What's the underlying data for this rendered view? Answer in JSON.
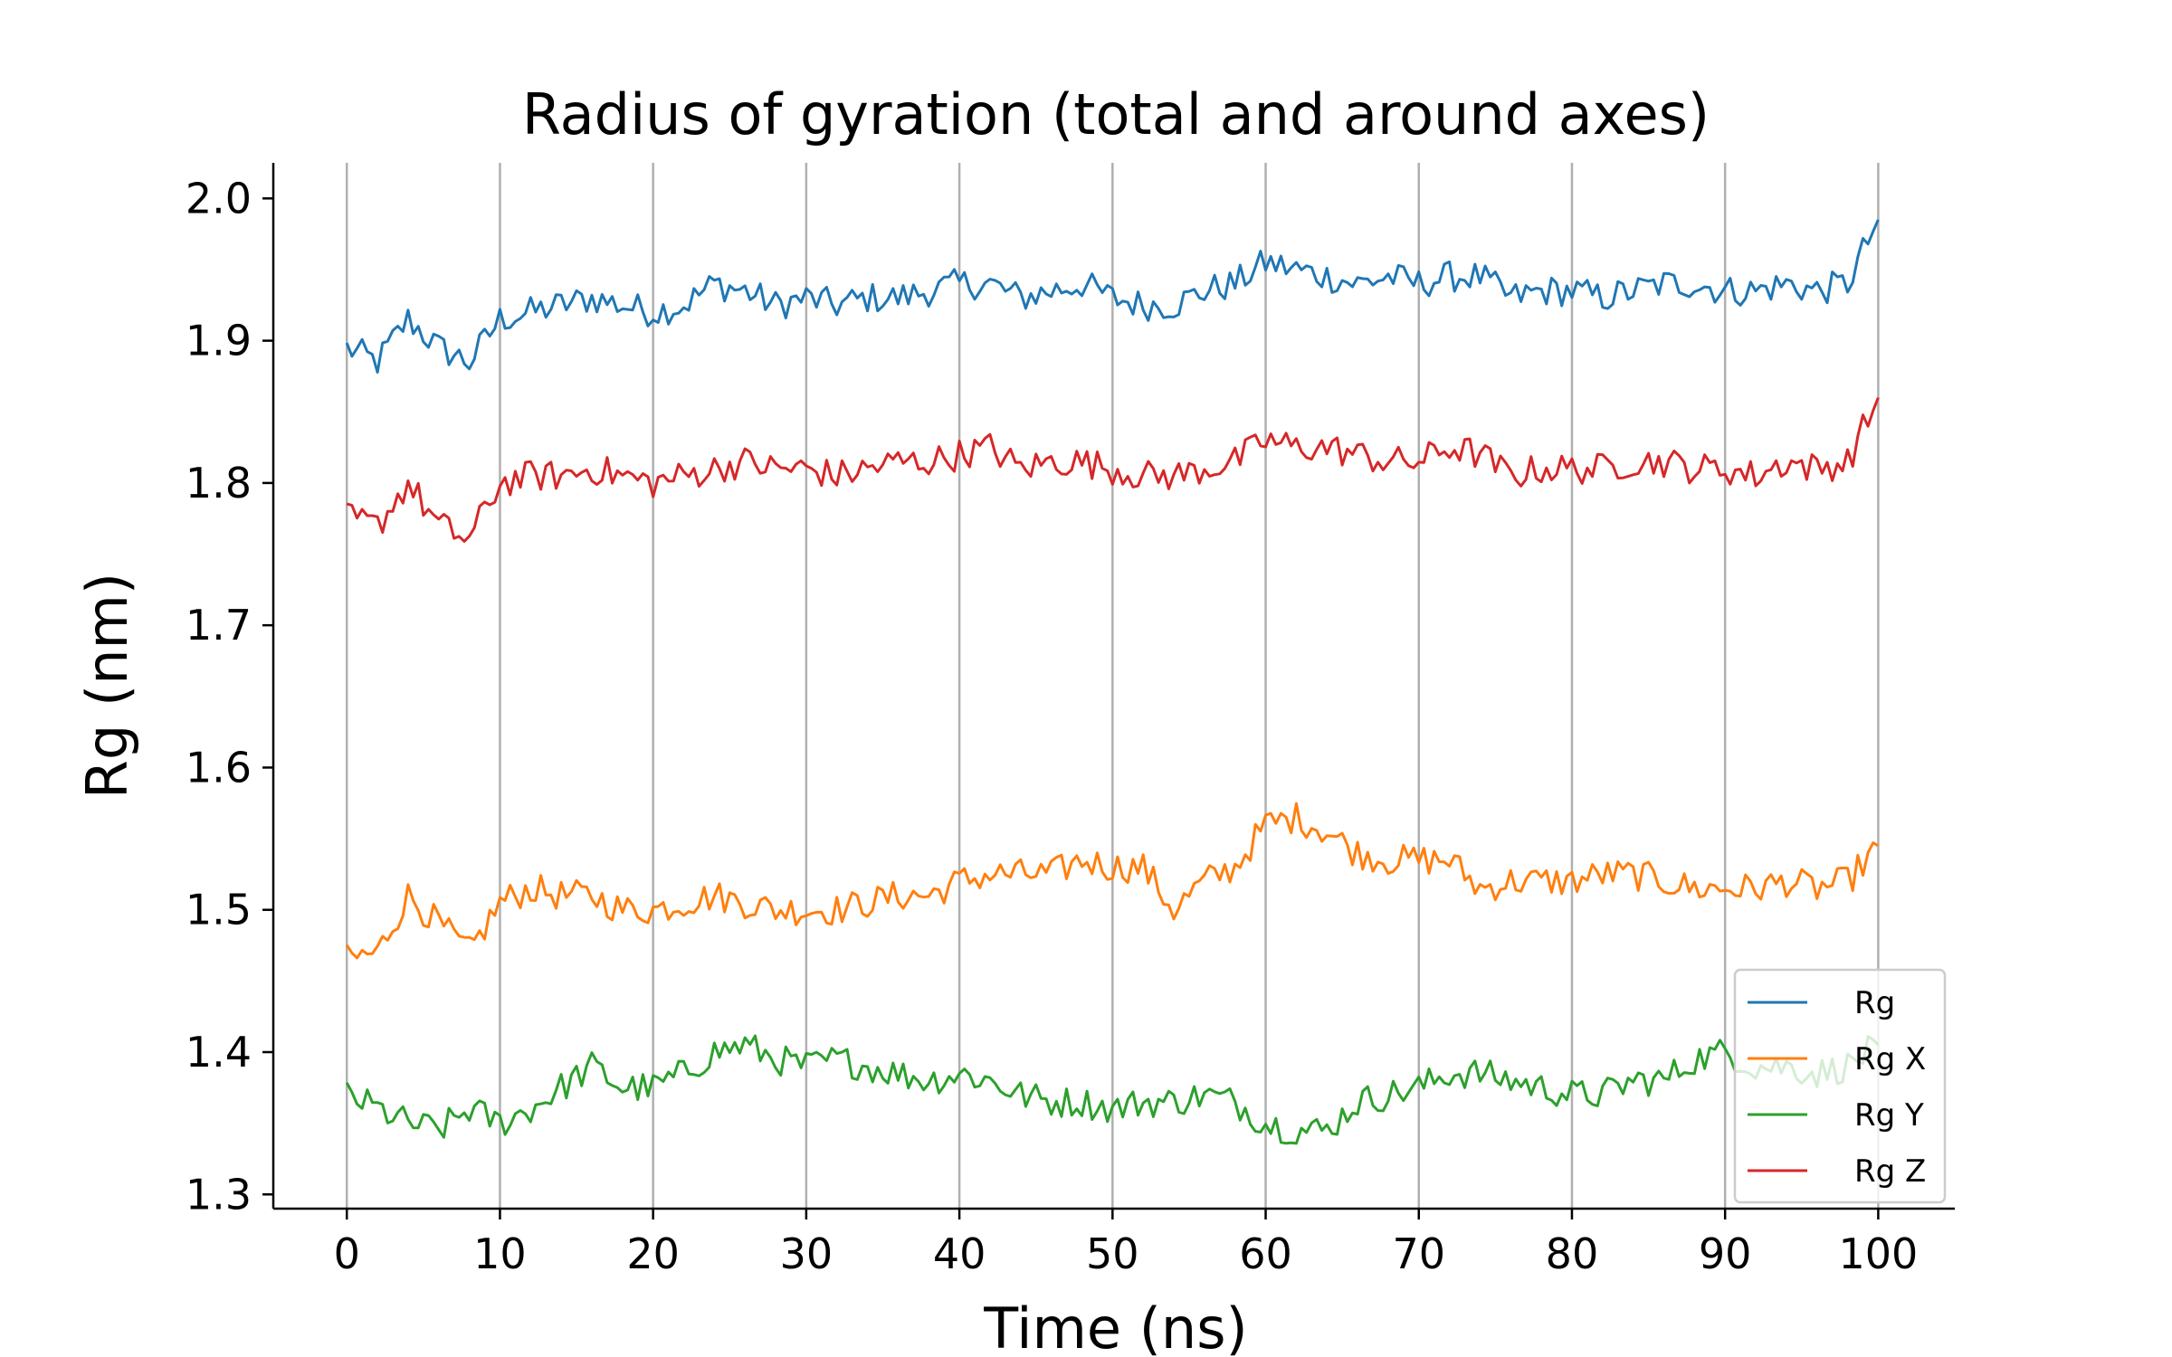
{
  "chart_data": {
    "type": "line",
    "title": "Radius of gyration (total and around axes)",
    "xlabel": "Time (ns)",
    "ylabel": "Rg (nm)",
    "xlim": [
      -4.8,
      105
    ],
    "ylim": [
      1.29,
      2.025
    ],
    "x_ticks": [
      0,
      10,
      20,
      30,
      40,
      50,
      60,
      70,
      80,
      90,
      100
    ],
    "x_tick_labels": [
      "0",
      "10",
      "20",
      "30",
      "40",
      "50",
      "60",
      "70",
      "80",
      "90",
      "100"
    ],
    "y_ticks": [
      1.3,
      1.4,
      1.5,
      1.6,
      1.7,
      1.8,
      1.9,
      2.0
    ],
    "y_tick_labels": [
      "1.3",
      "1.4",
      "1.5",
      "1.6",
      "1.7",
      "1.8",
      "1.9",
      "2.0"
    ],
    "grid": "vertical",
    "legend_position": "lower right",
    "x": [
      0,
      2,
      4,
      6,
      8,
      10,
      12,
      14,
      16,
      18,
      20,
      22,
      24,
      26,
      28,
      30,
      32,
      34,
      36,
      38,
      40,
      42,
      44,
      46,
      48,
      50,
      52,
      54,
      56,
      58,
      60,
      62,
      64,
      66,
      68,
      70,
      72,
      74,
      76,
      78,
      80,
      82,
      84,
      86,
      88,
      90,
      92,
      94,
      96,
      98,
      100
    ],
    "series": [
      {
        "name": "Rg",
        "color": "#1f77b4",
        "values": [
          1.895,
          1.885,
          1.915,
          1.895,
          1.885,
          1.915,
          1.92,
          1.925,
          1.93,
          1.925,
          1.92,
          1.925,
          1.94,
          1.935,
          1.925,
          1.93,
          1.925,
          1.93,
          1.93,
          1.935,
          1.94,
          1.94,
          1.93,
          1.935,
          1.94,
          1.93,
          1.925,
          1.925,
          1.935,
          1.94,
          1.955,
          1.95,
          1.945,
          1.94,
          1.945,
          1.94,
          1.945,
          1.945,
          1.93,
          1.935,
          1.935,
          1.93,
          1.935,
          1.94,
          1.94,
          1.935,
          1.935,
          1.94,
          1.935,
          1.94,
          1.985
        ]
      },
      {
        "name": "Rg X",
        "color": "#ff7f0e",
        "values": [
          1.465,
          1.47,
          1.51,
          1.49,
          1.47,
          1.505,
          1.515,
          1.51,
          1.51,
          1.5,
          1.5,
          1.505,
          1.51,
          1.505,
          1.5,
          1.5,
          1.5,
          1.505,
          1.51,
          1.51,
          1.52,
          1.525,
          1.525,
          1.525,
          1.535,
          1.53,
          1.53,
          1.5,
          1.52,
          1.53,
          1.56,
          1.565,
          1.555,
          1.54,
          1.535,
          1.535,
          1.535,
          1.515,
          1.52,
          1.52,
          1.52,
          1.525,
          1.525,
          1.52,
          1.515,
          1.515,
          1.515,
          1.52,
          1.515,
          1.52,
          1.545
        ]
      },
      {
        "name": "Rg Y",
        "color": "#2ca02c",
        "values": [
          1.37,
          1.36,
          1.35,
          1.345,
          1.36,
          1.35,
          1.36,
          1.375,
          1.39,
          1.375,
          1.375,
          1.385,
          1.4,
          1.405,
          1.395,
          1.39,
          1.395,
          1.39,
          1.385,
          1.38,
          1.385,
          1.38,
          1.37,
          1.365,
          1.365,
          1.36,
          1.365,
          1.365,
          1.37,
          1.365,
          1.35,
          1.345,
          1.345,
          1.365,
          1.37,
          1.375,
          1.385,
          1.385,
          1.38,
          1.375,
          1.37,
          1.37,
          1.38,
          1.38,
          1.395,
          1.4,
          1.39,
          1.39,
          1.385,
          1.39,
          1.405
        ]
      },
      {
        "name": "Rg Z",
        "color": "#d62728",
        "values": [
          1.775,
          1.77,
          1.8,
          1.77,
          1.76,
          1.8,
          1.805,
          1.805,
          1.81,
          1.805,
          1.8,
          1.805,
          1.81,
          1.815,
          1.81,
          1.81,
          1.805,
          1.81,
          1.815,
          1.815,
          1.82,
          1.825,
          1.81,
          1.815,
          1.815,
          1.81,
          1.805,
          1.805,
          1.81,
          1.815,
          1.83,
          1.825,
          1.825,
          1.82,
          1.815,
          1.815,
          1.825,
          1.82,
          1.805,
          1.81,
          1.81,
          1.81,
          1.815,
          1.815,
          1.81,
          1.81,
          1.805,
          1.815,
          1.81,
          1.815,
          1.86
        ]
      }
    ]
  }
}
